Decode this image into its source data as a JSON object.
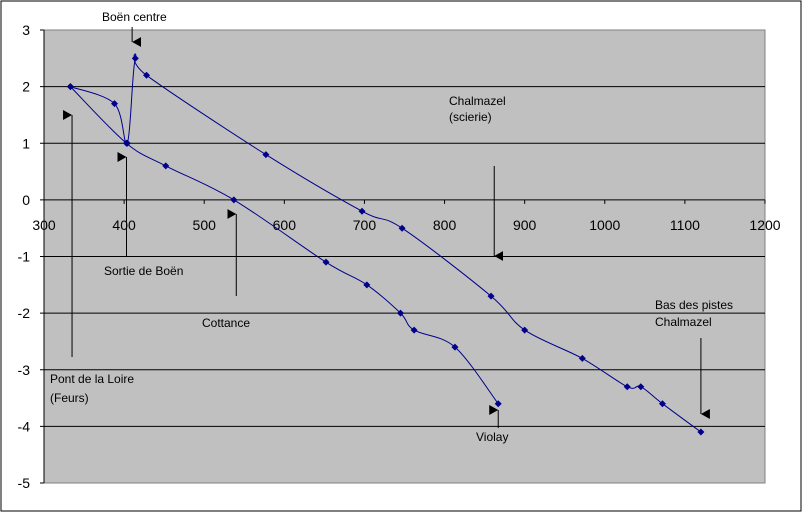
{
  "chart_data": {
    "type": "scatter",
    "title": "",
    "xlabel": "",
    "ylabel": "",
    "xlim": [
      300,
      1200
    ],
    "ylim": [
      -5,
      3
    ],
    "x_ticks": [
      300,
      400,
      500,
      600,
      700,
      800,
      900,
      1000,
      1100,
      1200
    ],
    "y_ticks": [
      3,
      2,
      1,
      0,
      -1,
      -2,
      -3,
      -4,
      -5
    ],
    "grid": "horizontal",
    "legend": "none",
    "colors": {
      "series": "#00008B",
      "plot_bg": "#C0C0C0"
    },
    "series": [
      {
        "points": [
          [
            333,
            2
          ],
          [
            388,
            1.7
          ],
          [
            404,
            1
          ],
          [
            414,
            2.5
          ],
          [
            428,
            2.2
          ],
          [
            577,
            0.8
          ],
          [
            697,
            -0.2
          ],
          [
            747,
            -0.5
          ],
          [
            858,
            -1.7
          ],
          [
            900,
            -2.3
          ],
          [
            972,
            -2.8
          ],
          [
            1028,
            -3.3
          ],
          [
            1045,
            -3.3
          ],
          [
            1072,
            -3.6
          ],
          [
            1120,
            -4.1
          ]
        ]
      },
      {
        "points": [
          [
            333,
            2
          ],
          [
            403,
            1
          ],
          [
            452,
            0.6
          ],
          [
            537,
            0
          ],
          [
            652,
            -1.1
          ],
          [
            703,
            -1.5
          ],
          [
            745,
            -2
          ],
          [
            762,
            -2.3
          ],
          [
            813,
            -2.6
          ],
          [
            867,
            -3.6
          ]
        ]
      }
    ],
    "annotations": [
      {
        "lines": [
          "Boën centre"
        ]
      },
      {
        "lines": [
          "Chalmazel",
          "(scierie)"
        ]
      },
      {
        "lines": [
          "Sortie de Boën"
        ]
      },
      {
        "lines": [
          "Cottance"
        ]
      },
      {
        "lines": [
          "Bas des pistes",
          "Chalmazel"
        ]
      },
      {
        "lines": [
          "Pont de la Loire",
          "(Feurs)"
        ]
      },
      {
        "lines": [
          "Violay"
        ]
      }
    ]
  }
}
